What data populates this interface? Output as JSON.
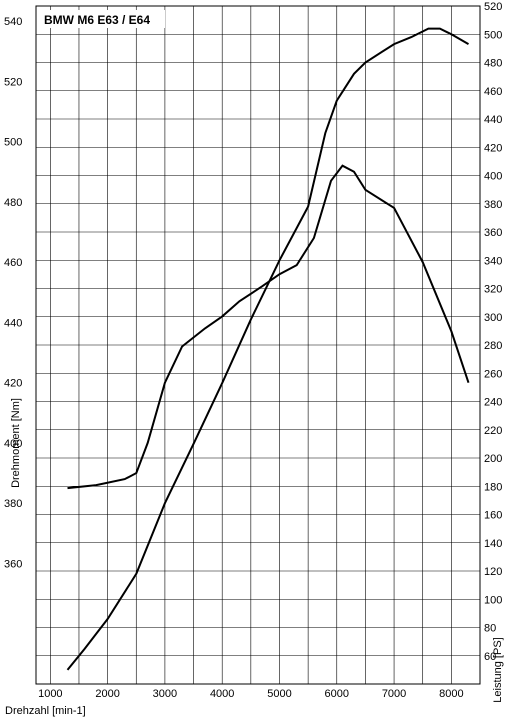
{
  "chart_data": {
    "type": "line",
    "title": "BMW M6 E63 / E64",
    "xlabel": "Drehzahl [min-1]",
    "ylabel_left": "Drehmoment [Nm]",
    "ylabel_right": "Leistung [PS]",
    "xlim": [
      750,
      8500
    ],
    "x_ticks": [
      1000,
      2000,
      3000,
      4000,
      5000,
      6000,
      7000,
      8000
    ],
    "ylim_left": [
      320,
      545
    ],
    "y_left_ticks": [
      360,
      380,
      400,
      420,
      440,
      460,
      480,
      500,
      520,
      540
    ],
    "ylim_right": [
      40,
      520
    ],
    "y_right_ticks": [
      60,
      80,
      100,
      120,
      140,
      160,
      180,
      200,
      220,
      240,
      260,
      280,
      300,
      320,
      340,
      360,
      380,
      400,
      420,
      440,
      460,
      480,
      500,
      520
    ],
    "grid": true,
    "series": [
      {
        "axis": "left",
        "x": [
          1300,
          1800,
          2300,
          2500,
          2700,
          3000,
          3300,
          3700,
          4000,
          4300,
          4700,
          5000,
          5300,
          5600,
          5900,
          6100,
          6300,
          6500,
          7000,
          7500,
          8000,
          8300
        ],
        "values": [
          385,
          386,
          388,
          390,
          400,
          420,
          432,
          438,
          442,
          447,
          452,
          456,
          459,
          468,
          487,
          492,
          490,
          484,
          478,
          460,
          437,
          420
        ]
      },
      {
        "axis": "right",
        "x": [
          1300,
          1600,
          2000,
          2500,
          3000,
          3500,
          4000,
          4500,
          5000,
          5500,
          5800,
          6000,
          6300,
          6500,
          7000,
          7300,
          7600,
          7800,
          8000,
          8300
        ],
        "values": [
          50,
          65,
          86,
          118,
          168,
          210,
          253,
          298,
          340,
          378,
          430,
          453,
          472,
          480,
          493,
          498,
          504,
          504,
          500,
          493
        ]
      }
    ]
  }
}
